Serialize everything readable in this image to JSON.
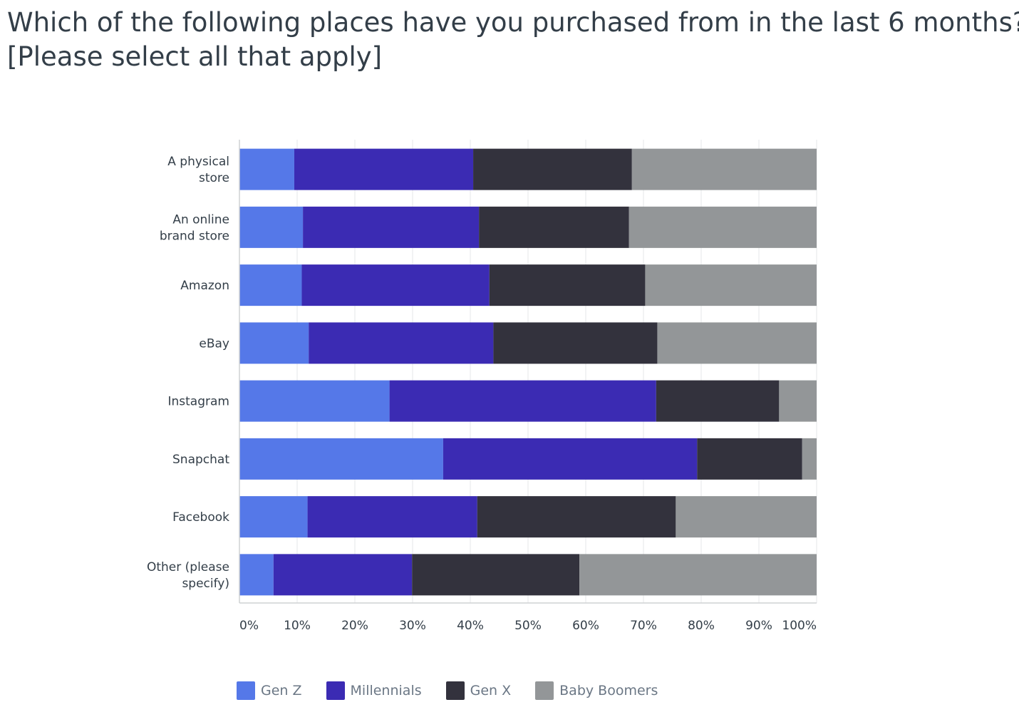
{
  "title": {
    "line1": "Which of the following places have you purchased from in the last 6 months?",
    "line2": "[Please select all that apply]"
  },
  "chart_data": {
    "type": "bar",
    "orientation": "horizontal",
    "stacked": "percent",
    "categories": [
      [
        "A physical",
        "store"
      ],
      [
        "An online",
        "brand store"
      ],
      [
        "Amazon"
      ],
      [
        "eBay"
      ],
      [
        "Instagram"
      ],
      [
        "Snapchat"
      ],
      [
        "Facebook"
      ],
      [
        "Other (please",
        "specify)"
      ]
    ],
    "series": [
      {
        "name": "Gen Z",
        "color": "#5578e8",
        "values": [
          9.5,
          11,
          10.8,
          12,
          26,
          35.3,
          11.8,
          5.9
        ]
      },
      {
        "name": "Millennials",
        "color": "#3b2bb3",
        "values": [
          31,
          30.5,
          32.5,
          32,
          46.2,
          44,
          29.4,
          24
        ]
      },
      {
        "name": "Gen X",
        "color": "#33323d",
        "values": [
          27.5,
          26,
          27,
          28.4,
          21.3,
          18.2,
          34.4,
          29
        ]
      },
      {
        "name": "Baby Boomers",
        "color": "#939698",
        "values": [
          32,
          32.5,
          29.7,
          27.6,
          6.5,
          2.5,
          24.4,
          41.1
        ]
      }
    ],
    "xlim": [
      0,
      100
    ],
    "xticks": [
      "0%",
      "10%",
      "20%",
      "30%",
      "40%",
      "50%",
      "60%",
      "70%",
      "80%",
      "90%",
      "100%"
    ],
    "grid": true,
    "legend_position": "bottom"
  }
}
